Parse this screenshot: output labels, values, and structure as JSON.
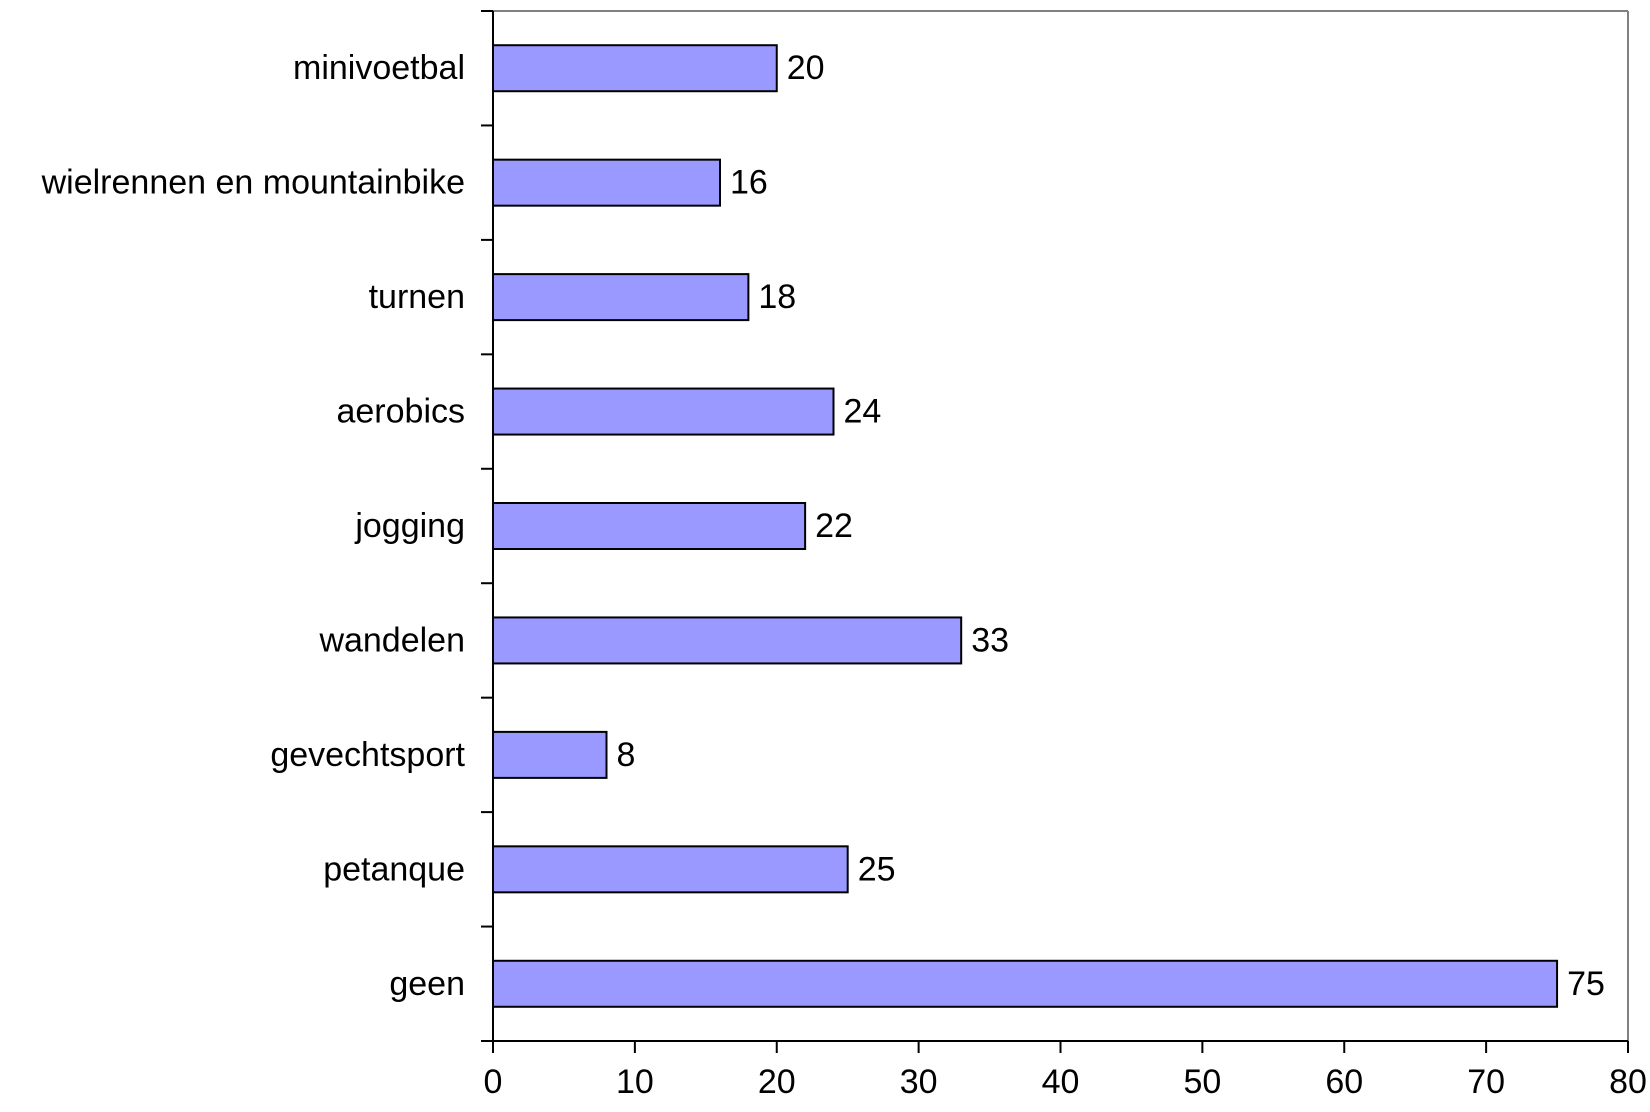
{
  "chart_data": {
    "type": "bar",
    "orientation": "horizontal",
    "categories": [
      "minivoetbal",
      "wielrennen en mountainbike",
      "turnen",
      "aerobics",
      "jogging",
      "wandelen",
      "gevechtsport",
      "petanque",
      "geen"
    ],
    "values": [
      20,
      16,
      18,
      24,
      22,
      33,
      8,
      25,
      75
    ],
    "data_labels": [
      "20",
      "16",
      "18",
      "24",
      "22",
      "33",
      "8",
      "25",
      "75"
    ],
    "x_ticks": [
      "0",
      "10",
      "20",
      "30",
      "40",
      "50",
      "60",
      "70",
      "80"
    ],
    "xlim": [
      0,
      80
    ],
    "grid": false,
    "legend": "none",
    "bar_color": "#9999ff",
    "bar_edge_color": "#000000",
    "plot_frame_color": "#808080"
  }
}
